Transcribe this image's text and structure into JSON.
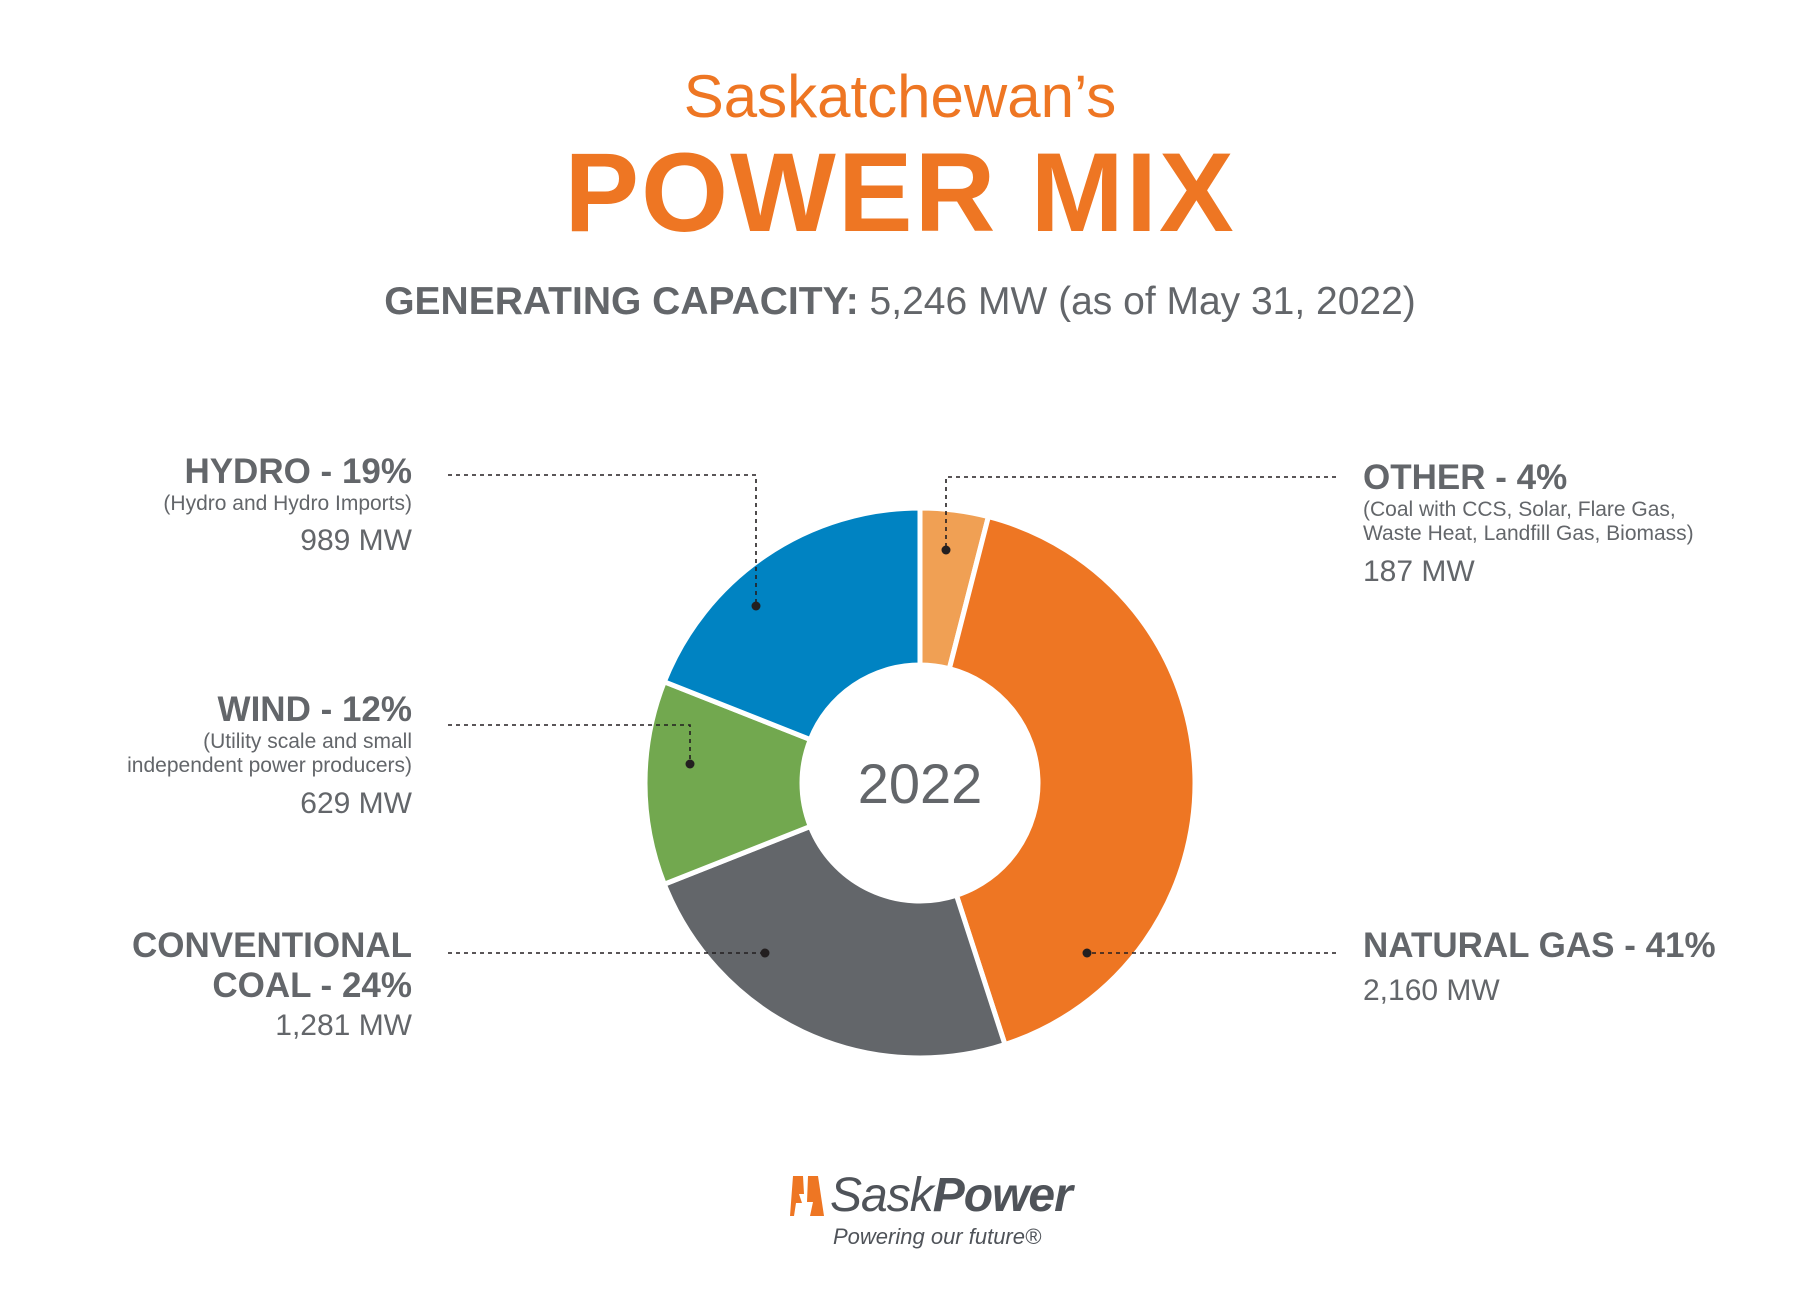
{
  "header": {
    "subtitle": "Saskatchewan’s",
    "title": "POWER MIX",
    "capacity_label": "GENERATING CAPACITY:",
    "capacity_value": "5,246 MW (as of May 31, 2022)"
  },
  "chart_data": {
    "type": "pie",
    "donut": true,
    "center_label": "2022",
    "start": "top",
    "direction": "clockwise",
    "slices": [
      {
        "label": "OTHER - 4%",
        "name": "Other",
        "value": 4,
        "mw": 187,
        "mw_text": "187 MW",
        "note": "(Coal with CCS, Solar, Flare Gas, Waste Heat, Landfill Gas, Biomass)",
        "color": "#F0A054"
      },
      {
        "label": "NATURAL GAS - 41%",
        "name": "Natural Gas",
        "value": 41,
        "mw": 2160,
        "mw_text": "2,160 MW",
        "note": "",
        "color": "#EE7623"
      },
      {
        "label": "CONVENTIONAL COAL - 24%",
        "name": "Conventional Coal",
        "value": 24,
        "mw": 1281,
        "mw_text": "1,281 MW",
        "note": "",
        "color": "#63666A"
      },
      {
        "label": "WIND - 12%",
        "name": "Wind",
        "value": 12,
        "mw": 629,
        "mw_text": "629 MW",
        "note": "(Utility scale and small independent power producers)",
        "color": "#72A84F"
      },
      {
        "label": "HYDRO - 19%",
        "name": "Hydro",
        "value": 19,
        "mw": 989,
        "mw_text": "989 MW",
        "note": "(Hydro and Hydro Imports)",
        "color": "#0083C2"
      }
    ]
  },
  "labels": {
    "hydro": {
      "title": "HYDRO - 19%",
      "note": "(Hydro and Hydro Imports)",
      "mw": "989 MW"
    },
    "wind": {
      "title": "WIND - 12%",
      "note1": "(Utility scale and small",
      "note2": "independent power producers)",
      "mw": "629 MW"
    },
    "coal": {
      "title1": "CONVENTIONAL",
      "title2": "COAL - 24%",
      "mw": "1,281 MW"
    },
    "other": {
      "title": "OTHER - 4%",
      "note1": "(Coal with CCS, Solar, Flare Gas,",
      "note2": "Waste Heat, Landfill Gas, Biomass)",
      "mw": "187 MW"
    },
    "gas": {
      "title": "NATURAL GAS - 41%",
      "mw": "2,160 MW"
    }
  },
  "logo": {
    "brand_light": "Sask",
    "brand_bold": "Power",
    "tagline": "Powering our future®"
  },
  "colors": {
    "accent": "#EE7623",
    "text": "#63666A"
  }
}
